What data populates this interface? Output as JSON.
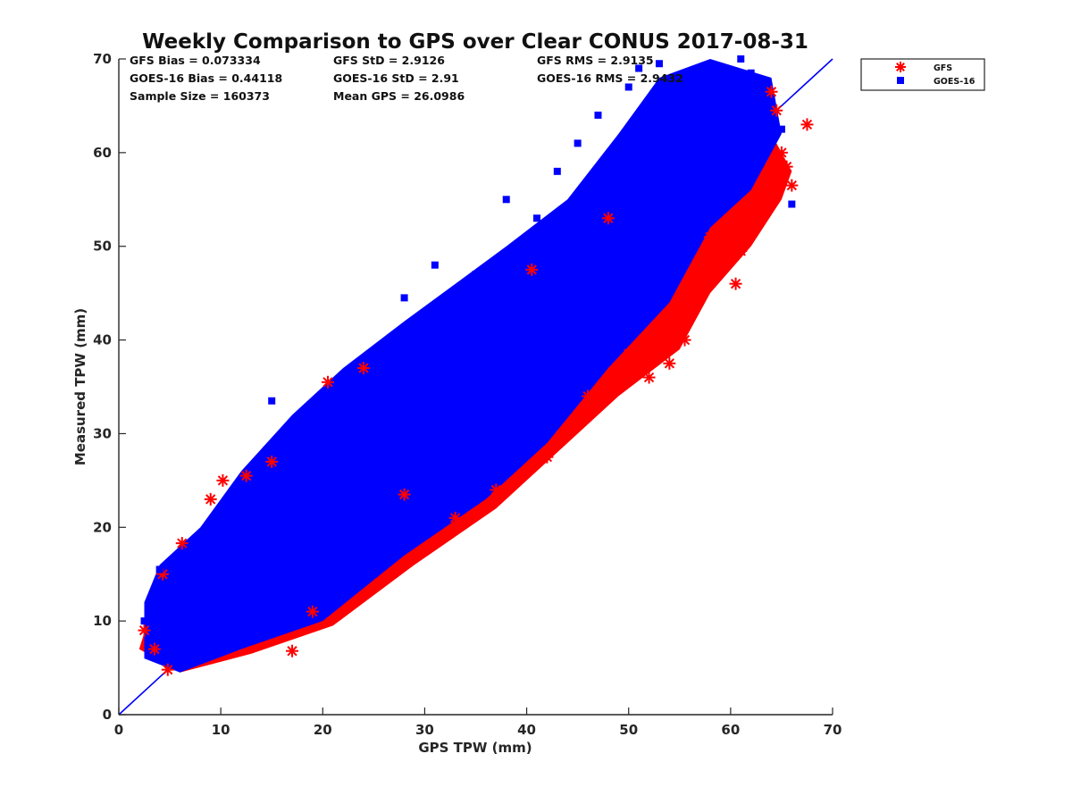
{
  "chart_data": {
    "type": "scatter",
    "title": "Weekly Comparison to GPS over Clear CONUS 2017-08-31",
    "xlabel": "GPS TPW (mm)",
    "ylabel": "Measured TPW (mm)",
    "xlim": [
      0,
      70
    ],
    "ylim": [
      0,
      70
    ],
    "xticks": [
      "0",
      "10",
      "20",
      "30",
      "40",
      "50",
      "60",
      "70"
    ],
    "yticks": [
      "0",
      "10",
      "20",
      "30",
      "40",
      "50",
      "60",
      "70"
    ],
    "grid": false,
    "legend_position": "outside-top-right",
    "reference_line": {
      "x": [
        0,
        70
      ],
      "y": [
        0,
        70
      ],
      "color": "#0000ff"
    },
    "stats": [
      [
        "GFS Bias = 0.073334",
        "GFS StD = 2.9126",
        "GFS RMS = 2.9135"
      ],
      [
        "GOES-16 Bias = 0.44118",
        "GOES-16 StD = 2.91",
        "GOES-16 RMS = 2.9432"
      ],
      [
        "Sample Size = 160373",
        "Mean GPS = 26.0986",
        ""
      ]
    ],
    "series": [
      {
        "name": "GFS",
        "marker": "asterisk",
        "color": "#ff0000",
        "x": [
          2.5,
          3.5,
          4.3,
          4.8,
          6.2,
          9.0,
          10.2,
          12.5,
          15.0,
          17.0,
          19.0,
          20.5,
          24.0,
          25.5,
          28.0,
          33.0,
          37.0,
          40.5,
          42.0,
          45.0,
          46.0,
          48.0,
          50.0,
          52.0,
          54.0,
          55.5,
          56.0,
          57.5,
          58.0,
          60.5,
          61.0,
          62.0,
          63.0,
          63.5,
          64.0,
          64.5,
          65.0,
          65.5,
          66.0,
          67.5
        ],
        "y": [
          9.0,
          7.0,
          15.0,
          4.8,
          18.3,
          23.0,
          25.0,
          25.5,
          27.0,
          6.8,
          11.0,
          35.5,
          37.0,
          14.0,
          23.5,
          21.0,
          24.0,
          47.5,
          27.5,
          31.0,
          34.0,
          53.0,
          38.5,
          36.0,
          37.5,
          40.0,
          42.5,
          48.5,
          51.0,
          46.0,
          49.5,
          53.0,
          54.0,
          57.0,
          66.5,
          64.5,
          60.0,
          58.5,
          56.5,
          63.0
        ]
      },
      {
        "name": "GOES-16",
        "marker": "square",
        "color": "#0000ff",
        "x": [
          2.5,
          3.0,
          4.0,
          5.0,
          7.0,
          10.0,
          12.0,
          15.0,
          18.0,
          20.0,
          25.0,
          28.0,
          31.0,
          35.0,
          38.0,
          41.0,
          43.0,
          45.0,
          47.0,
          50.0,
          51.0,
          53.0,
          55.0,
          56.0,
          57.0,
          58.0,
          60.0,
          61.0,
          62.0,
          63.0,
          65.0,
          66.0
        ],
        "y": [
          10.0,
          8.0,
          15.5,
          6.0,
          13.0,
          17.0,
          23.0,
          33.5,
          27.0,
          34.0,
          38.0,
          44.5,
          48.0,
          47.0,
          55.0,
          53.0,
          58.0,
          61.0,
          64.0,
          67.0,
          69.0,
          69.5,
          68.0,
          64.0,
          60.0,
          56.0,
          55.0,
          70.0,
          68.5,
          67.0,
          62.5,
          54.5
        ]
      }
    ]
  }
}
